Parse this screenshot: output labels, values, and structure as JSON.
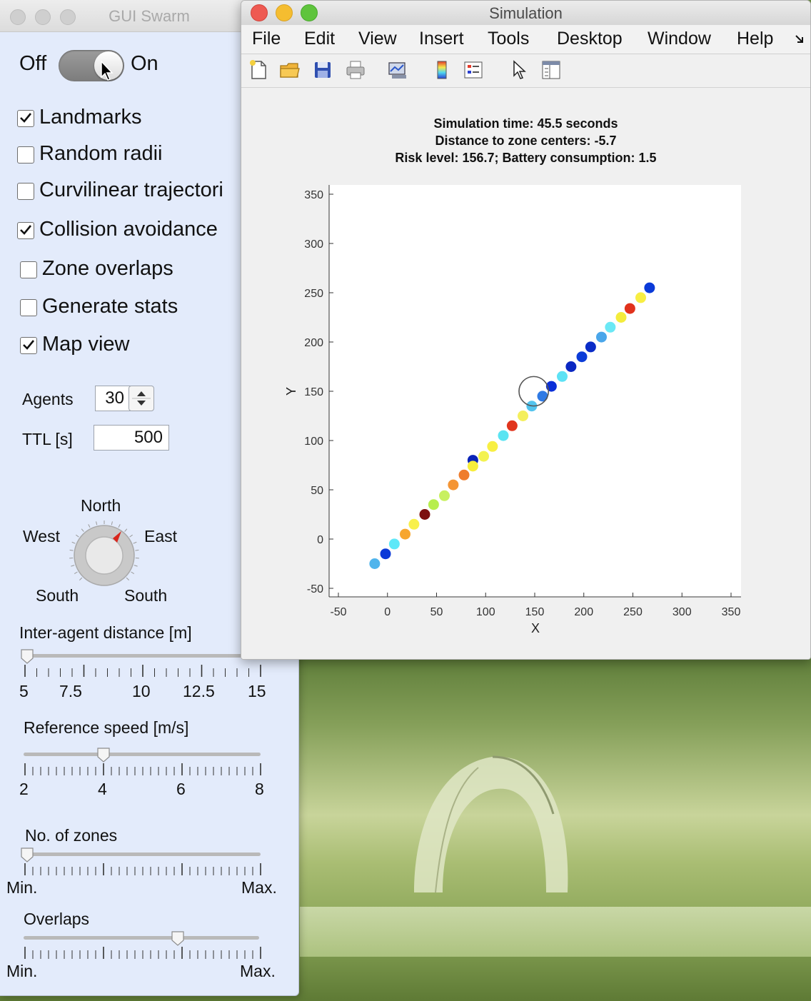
{
  "swarm_window": {
    "title": "GUI Swarm",
    "toggle": {
      "off_label": "Off",
      "on_label": "On",
      "state": "on"
    },
    "checkboxes": [
      {
        "label": "Landmarks",
        "checked": true
      },
      {
        "label": "Random radii",
        "checked": false
      },
      {
        "label": "Curvilinear trajectori",
        "checked": false
      },
      {
        "label": "Collision avoidance",
        "checked": true
      },
      {
        "label": "Zone overlaps",
        "checked": false
      },
      {
        "label": "Generate stats",
        "checked": false
      },
      {
        "label": "Map view",
        "checked": true
      }
    ],
    "agents": {
      "label": "Agents",
      "value": "30"
    },
    "ttl": {
      "label": "TTL [s]",
      "value": "500"
    },
    "compass": {
      "north": "North",
      "west": "West",
      "east": "East",
      "south_left": "South",
      "south_right": "South"
    },
    "inter_agent": {
      "label": "Inter-agent distance [m]",
      "ticks": [
        "5",
        "7.5",
        "10",
        "12.5",
        "15"
      ],
      "value": 5
    },
    "ref_speed": {
      "label": "Reference speed [m/s]",
      "ticks": [
        "2",
        "4",
        "6",
        "8"
      ],
      "value": 4
    },
    "zones": {
      "label": "No. of zones",
      "min": "Min.",
      "max": "Max.",
      "fraction": 0.0
    },
    "overlaps": {
      "label": "Overlaps",
      "min": "Min.",
      "max": "Max.",
      "fraction": 0.66
    }
  },
  "sim_window": {
    "title": "Simulation",
    "menu": [
      "File",
      "Edit",
      "View",
      "Insert",
      "Tools",
      "Desktop",
      "Window",
      "Help"
    ],
    "info": {
      "line1": "Simulation time: 45.5 seconds",
      "line2": "Distance to zone centers: -5.7",
      "line3": "Risk level: 156.7;   Battery consumption: 1.5"
    }
  },
  "chart_data": {
    "type": "scatter",
    "xlabel": "X",
    "ylabel": "Y",
    "xlim": [
      -50,
      350
    ],
    "ylim": [
      -50,
      350
    ],
    "xticks": [
      -50,
      0,
      50,
      100,
      150,
      200,
      250,
      300,
      350
    ],
    "yticks": [
      350,
      300,
      250,
      200,
      150,
      100,
      50,
      0,
      -50
    ],
    "points": [
      {
        "x": -13,
        "y": -25,
        "color": "#4fb4ec"
      },
      {
        "x": -2,
        "y": -15,
        "color": "#0b39d8"
      },
      {
        "x": 7,
        "y": -5,
        "color": "#5ee8f8"
      },
      {
        "x": 18,
        "y": 5,
        "color": "#f7a62e"
      },
      {
        "x": 27,
        "y": 15,
        "color": "#f8f04a"
      },
      {
        "x": 38,
        "y": 25,
        "color": "#7d1010"
      },
      {
        "x": 47,
        "y": 35,
        "color": "#b7ee4e"
      },
      {
        "x": 58,
        "y": 44,
        "color": "#c8f060"
      },
      {
        "x": 67,
        "y": 55,
        "color": "#f49534"
      },
      {
        "x": 78,
        "y": 65,
        "color": "#ef7c2c"
      },
      {
        "x": 87,
        "y": 80,
        "color": "#0b24b8"
      },
      {
        "x": 87,
        "y": 74,
        "color": "#f8ee3c"
      },
      {
        "x": 98,
        "y": 84,
        "color": "#f3f250"
      },
      {
        "x": 107,
        "y": 94,
        "color": "#f8ef42"
      },
      {
        "x": 118,
        "y": 105,
        "color": "#5ae4f2"
      },
      {
        "x": 127,
        "y": 115,
        "color": "#e1351e"
      },
      {
        "x": 138,
        "y": 125,
        "color": "#f4ef5c"
      },
      {
        "x": 147,
        "y": 135,
        "color": "#53c4ee"
      },
      {
        "x": 158,
        "y": 145,
        "color": "#2f7ae4"
      },
      {
        "x": 167,
        "y": 155,
        "color": "#0a2fd8"
      },
      {
        "x": 178,
        "y": 165,
        "color": "#5de2f5"
      },
      {
        "x": 187,
        "y": 175,
        "color": "#0b27c2"
      },
      {
        "x": 198,
        "y": 185,
        "color": "#0c3cd8"
      },
      {
        "x": 207,
        "y": 195,
        "color": "#0a2cc7"
      },
      {
        "x": 218,
        "y": 205,
        "color": "#4aa6ea"
      },
      {
        "x": 227,
        "y": 215,
        "color": "#6be8f5"
      },
      {
        "x": 238,
        "y": 225,
        "color": "#f4ec3c"
      },
      {
        "x": 247,
        "y": 234,
        "color": "#e1321c"
      },
      {
        "x": 258,
        "y": 245,
        "color": "#f8ee42"
      },
      {
        "x": 267,
        "y": 255,
        "color": "#0a3ad8"
      }
    ],
    "zone": {
      "x": 149,
      "y": 150,
      "r": 15
    }
  }
}
